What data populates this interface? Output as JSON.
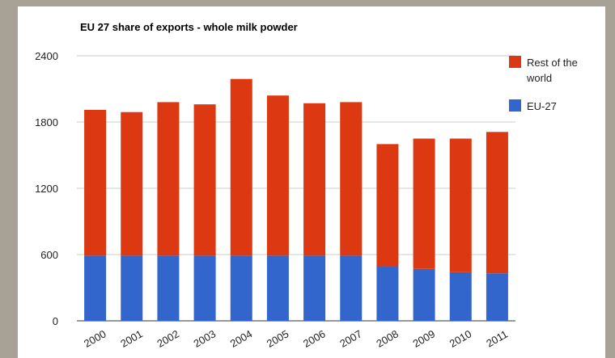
{
  "chart_data": {
    "type": "bar",
    "stacked": true,
    "title": "EU 27 share of exports - whole milk powder",
    "xlabel": "",
    "ylabel": "",
    "categories": [
      "2000",
      "2001",
      "2002",
      "2003",
      "2004",
      "2005",
      "2006",
      "2007",
      "2008",
      "2009",
      "2010",
      "2011"
    ],
    "ylim": [
      0,
      2400
    ],
    "yticks": [
      0,
      600,
      1200,
      1800,
      2400
    ],
    "grid": true,
    "legend_position": "right",
    "series": [
      {
        "name": "EU-27",
        "color": "#3366cc",
        "values": [
          590,
          590,
          590,
          590,
          590,
          590,
          590,
          590,
          490,
          470,
          440,
          430
        ]
      },
      {
        "name": "Rest of the world",
        "color": "#dc3912",
        "values": [
          1320,
          1300,
          1390,
          1370,
          1600,
          1450,
          1380,
          1390,
          1110,
          1180,
          1210,
          1280
        ]
      }
    ],
    "legend_lines": [
      [
        "Rest of the",
        "world"
      ],
      [
        "EU-27"
      ]
    ]
  }
}
